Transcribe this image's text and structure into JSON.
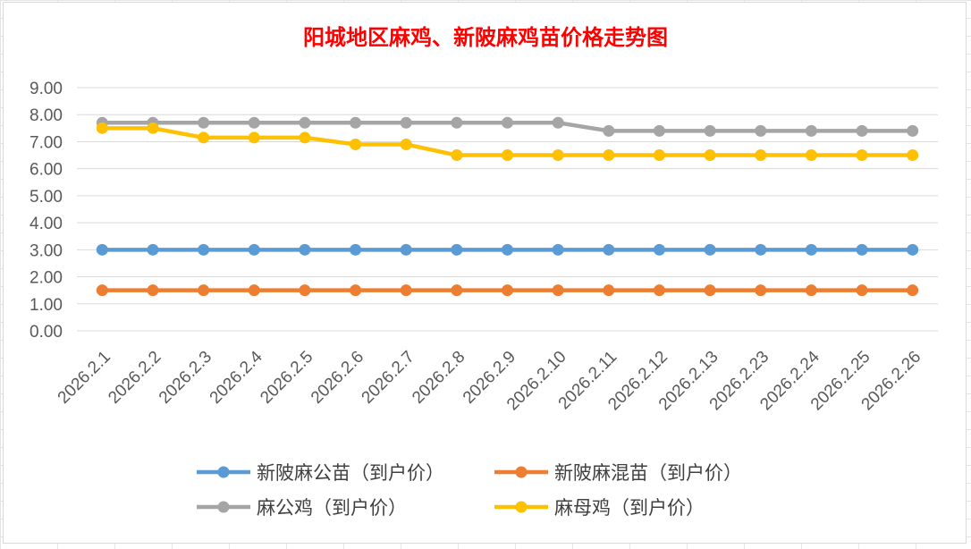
{
  "chart_data": {
    "type": "line",
    "title": "阳城地区麻鸡、新陂麻鸡苗价格走势图",
    "categories": [
      "2026.2.1",
      "2026.2.2",
      "2026.2.3",
      "2026.2.4",
      "2026.2.5",
      "2026.2.6",
      "2026.2.7",
      "2026.2.8",
      "2026.2.9",
      "2026.2.10",
      "2026.2.11",
      "2026.2.12",
      "2026.2.13",
      "2026.2.23",
      "2026.2.24",
      "2026.2.25",
      "2026.2.26"
    ],
    "ylim": [
      0,
      9
    ],
    "yticks": [
      "0.00",
      "1.00",
      "2.00",
      "3.00",
      "4.00",
      "5.00",
      "6.00",
      "7.00",
      "8.00",
      "9.00"
    ],
    "grid": true,
    "legend_position": "bottom",
    "series": [
      {
        "name": "新陂麻公苗（到户价）",
        "color": "#5B9BD5",
        "values": [
          3,
          3,
          3,
          3,
          3,
          3,
          3,
          3,
          3,
          3,
          3,
          3,
          3,
          3,
          3,
          3,
          3
        ]
      },
      {
        "name": "新陂麻混苗（到户价）",
        "color": "#ED7D31",
        "values": [
          1.5,
          1.5,
          1.5,
          1.5,
          1.5,
          1.5,
          1.5,
          1.5,
          1.5,
          1.5,
          1.5,
          1.5,
          1.5,
          1.5,
          1.5,
          1.5,
          1.5
        ]
      },
      {
        "name": "麻公鸡（到户价）",
        "color": "#A5A5A5",
        "values": [
          7.7,
          7.7,
          7.7,
          7.7,
          7.7,
          7.7,
          7.7,
          7.7,
          7.7,
          7.7,
          7.4,
          7.4,
          7.4,
          7.4,
          7.4,
          7.4,
          7.4
        ]
      },
      {
        "name": "麻母鸡（到户价）",
        "color": "#FFC000",
        "values": [
          7.5,
          7.5,
          7.15,
          7.15,
          7.15,
          6.9,
          6.9,
          6.5,
          6.5,
          6.5,
          6.5,
          6.5,
          6.5,
          6.5,
          6.5,
          6.5,
          6.5
        ]
      }
    ]
  }
}
